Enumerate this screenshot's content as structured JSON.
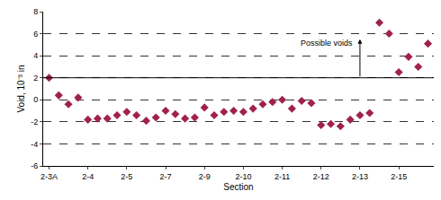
{
  "chart_data": {
    "type": "scatter",
    "x_label": "Section",
    "y_label": "Void, 10⁻³ in",
    "categories": [
      "2-3A",
      null,
      null,
      null,
      "2-4",
      null,
      null,
      null,
      "2-5",
      null,
      null,
      null,
      "2-7",
      null,
      null,
      null,
      "2-9",
      null,
      null,
      null,
      "2-10",
      null,
      null,
      null,
      "2-11",
      null,
      null,
      null,
      "2-12",
      null,
      null,
      null,
      "2-13",
      null,
      null,
      null,
      "2-15",
      null,
      null,
      null
    ],
    "values": [
      2.0,
      0.4,
      -0.4,
      0.2,
      -1.8,
      -1.7,
      -1.7,
      -1.4,
      -1.1,
      -1.4,
      -1.9,
      -1.6,
      -1.0,
      -1.3,
      -1.7,
      -1.6,
      -0.7,
      -1.4,
      -1.1,
      -1.0,
      -1.1,
      -0.8,
      -0.4,
      -0.2,
      0.0,
      -0.8,
      -0.1,
      -0.3,
      -2.3,
      -2.2,
      -2.4,
      -1.8,
      -1.4,
      -1.2,
      7.0,
      6.0,
      2.5,
      3.9,
      3.0,
      5.1
    ],
    "color": "#a0224a",
    "marker": "diamond",
    "ylim": [
      -6,
      8
    ],
    "yticks": [
      -6,
      -4,
      -2,
      0,
      2,
      4,
      6,
      8
    ],
    "grid": true,
    "annotations": [
      {
        "text": "Possible voids",
        "x": 32,
        "y": 5.5,
        "y_start": 2
      }
    ]
  }
}
